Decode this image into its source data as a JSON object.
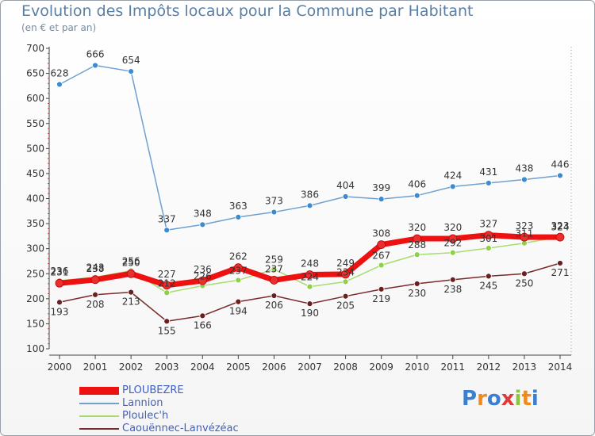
{
  "title": "Evolution des Impôts locaux pour la Commune par Habitant",
  "subtitle": "(en € et par an)",
  "brand": "Proxiti",
  "chart_data": {
    "type": "line",
    "x": [
      2000,
      2001,
      2002,
      2003,
      2004,
      2005,
      2006,
      2007,
      2008,
      2009,
      2010,
      2011,
      2012,
      2013,
      2014
    ],
    "ylim": [
      100,
      700
    ],
    "yticks": [
      100,
      150,
      200,
      250,
      300,
      350,
      400,
      450,
      500,
      550,
      600,
      650,
      700
    ],
    "grid": false,
    "legend_position": "bottom-left",
    "series": [
      {
        "name": "PLOUBEZRE",
        "color": "#ee1111",
        "marker_color": "#e83030",
        "width": 7,
        "values": [
          231,
          238,
          250,
          227,
          236,
          262,
          237,
          248,
          249,
          308,
          320,
          320,
          327,
          323,
          323
        ],
        "labels": [
          "231",
          "238",
          "250",
          "227",
          "236",
          "262",
          "237",
          "248",
          "249",
          "308",
          "320",
          "320",
          "327",
          "323",
          "323"
        ]
      },
      {
        "name": "Lannion",
        "color": "#6fa0d0",
        "marker_color": "#3a8bd0",
        "width": 1.5,
        "values": [
          628,
          666,
          654,
          337,
          348,
          363,
          373,
          386,
          404,
          399,
          406,
          424,
          431,
          438,
          446
        ],
        "labels": [
          "628",
          "666",
          "654",
          "337",
          "348",
          "363",
          "373",
          "386",
          "404",
          "399",
          "406",
          "424",
          "431",
          "438",
          "446"
        ]
      },
      {
        "name": "Ploulec'h",
        "color": "#a8dc70",
        "marker_color": "#8cd048",
        "width": 1.5,
        "values": [
          236,
          243,
          256,
          212,
          226,
          237,
          259,
          224,
          234,
          267,
          288,
          292,
          301,
          311,
          324
        ],
        "labels": [
          "236",
          "243",
          "256",
          "212",
          "226",
          "237",
          "259",
          "224",
          "234",
          "267",
          "288",
          "292",
          "301",
          "311",
          "324"
        ]
      },
      {
        "name": "Caouënnec-Lanvézéac",
        "color": "#7a2a2a",
        "marker_color": "#6a2020",
        "width": 1.5,
        "values": [
          193,
          208,
          213,
          155,
          166,
          194,
          206,
          190,
          205,
          219,
          230,
          238,
          245,
          250,
          271
        ],
        "labels": [
          "193",
          "208",
          "213",
          "155",
          "166",
          "194",
          "206",
          "190",
          "205",
          "219",
          "230",
          "238",
          "245",
          "250",
          "271"
        ]
      }
    ]
  }
}
